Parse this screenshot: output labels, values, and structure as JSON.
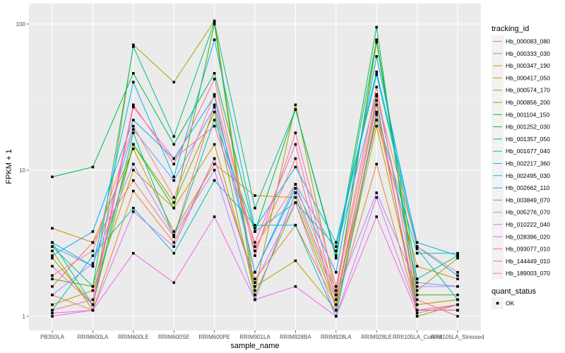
{
  "chart_data": {
    "type": "line",
    "title": "",
    "xlabel": "sample_name",
    "ylabel": "FPKM + 1",
    "y_scale": "log10",
    "ylim": [
      0.85,
      125
    ],
    "y_ticks": [
      1,
      10,
      100
    ],
    "y_tick_labels": [
      "1",
      "10",
      "100"
    ],
    "grid": true,
    "legend_position": "right",
    "categories": [
      "PB350LA",
      "RRIM600LA",
      "RRIM600LE",
      "RRIM600SE",
      "RRIM600PE",
      "RRIM901LA",
      "RRIM928BA",
      "RRIM928LA",
      "RRIM928LE",
      "RRII105LA_Control",
      "RRII105LA_Stressed"
    ],
    "color_legend_title": "tracking_id",
    "shape_legend_title": "quant_status",
    "shape_legend": [
      {
        "label": "OK",
        "shape": "square"
      }
    ],
    "series": [
      {
        "name": "Hb_000083_080",
        "color": "#F8766D",
        "values": [
          1.6,
          3.2,
          8.5,
          3.5,
          28,
          2.8,
          12,
          1.1,
          25,
          1.2,
          1.3
        ]
      },
      {
        "name": "Hb_000333_030",
        "color": "#EA8331",
        "values": [
          1.4,
          1.1,
          7.2,
          3.2,
          12,
          1.8,
          4.2,
          1.2,
          11,
          1.1,
          1.2
        ]
      },
      {
        "name": "Hb_000347_190",
        "color": "#D89000",
        "values": [
          4.0,
          3.2,
          14,
          3.8,
          11,
          6.7,
          6.5,
          1.3,
          22,
          2.2,
          1.8
        ]
      },
      {
        "name": "Hb_000417_050",
        "color": "#C09B00",
        "values": [
          1.2,
          1.5,
          10,
          5.5,
          15,
          1.6,
          2.4,
          1.1,
          20,
          1.2,
          1.3
        ]
      },
      {
        "name": "Hb_000574_170",
        "color": "#A3A500",
        "values": [
          2.8,
          1.1,
          72,
          40,
          105,
          1.5,
          28,
          1.4,
          75,
          1.5,
          2.5
        ]
      },
      {
        "name": "Hb_000856_200",
        "color": "#7CAE00",
        "values": [
          2.5,
          1.2,
          15,
          6.0,
          25,
          1.4,
          6.0,
          1.2,
          30,
          1.0,
          1.2
        ]
      },
      {
        "name": "Hb_001104_150",
        "color": "#39B600",
        "values": [
          1.8,
          1.6,
          15,
          5.5,
          100,
          1.3,
          7.0,
          1.4,
          78,
          1.4,
          1.4
        ]
      },
      {
        "name": "Hb_001252_030",
        "color": "#00BB4E",
        "values": [
          9.0,
          10.5,
          46,
          15,
          46,
          3.8,
          26,
          2.6,
          95,
          1.1,
          1.1
        ]
      },
      {
        "name": "Hb_001357_050",
        "color": "#00BF7D",
        "values": [
          3.0,
          1.6,
          70,
          17,
          103,
          5.5,
          26,
          2.5,
          78,
          1.8,
          2.6
        ]
      },
      {
        "name": "Hb_001677_040",
        "color": "#00C1A3",
        "values": [
          3.2,
          1.2,
          18,
          3.5,
          22,
          3.8,
          6.0,
          3.0,
          45,
          2.9,
          1.3
        ]
      },
      {
        "name": "Hb_002217_360",
        "color": "#00BFC4",
        "values": [
          1.1,
          2.6,
          5.5,
          2.7,
          8.5,
          4.2,
          4.2,
          1.0,
          24,
          2.7,
          2.7
        ]
      },
      {
        "name": "Hb_002495_030",
        "color": "#00B9E3",
        "values": [
          3.2,
          2.2,
          40,
          9.0,
          78,
          4.0,
          10.5,
          3.2,
          47,
          3.2,
          2.6
        ]
      },
      {
        "name": "Hb_002662_110",
        "color": "#00ADFA",
        "values": [
          2.6,
          3.8,
          22,
          12,
          32,
          2.0,
          7.5,
          2.0,
          60,
          3.0,
          1.9
        ]
      },
      {
        "name": "Hb_003849_070",
        "color": "#619CFF",
        "values": [
          3.0,
          2.2,
          19,
          8.5,
          27,
          2.0,
          8.0,
          2.8,
          33,
          1.7,
          1.6
        ]
      },
      {
        "name": "Hb_005276_070",
        "color": "#AE87FF",
        "values": [
          1.4,
          2.3,
          11,
          3.6,
          10,
          1.3,
          7.0,
          1.4,
          7.0,
          1.6,
          1.6
        ]
      },
      {
        "name": "Hb_010222_040",
        "color": "#DB72FB",
        "values": [
          1.0,
          1.1,
          5.2,
          3.0,
          12,
          1.7,
          6.0,
          1.0,
          6.5,
          1.1,
          1.1
        ]
      },
      {
        "name": "Hb_028396_020",
        "color": "#F564E3",
        "values": [
          1.05,
          1.1,
          2.7,
          1.7,
          4.8,
          1.3,
          1.6,
          1.0,
          4.8,
          1.05,
          1.2
        ]
      },
      {
        "name": "Hb_093077_010",
        "color": "#FF61C3",
        "values": [
          2.2,
          1.2,
          27,
          12,
          20,
          3.2,
          15,
          1.3,
          28,
          1.1,
          1.1
        ]
      },
      {
        "name": "Hb_144449_010",
        "color": "#FF6C91",
        "values": [
          1.1,
          1.3,
          28,
          11,
          42,
          2.6,
          18,
          1.6,
          37,
          1.3,
          1.0
        ]
      },
      {
        "name": "Hb_189003_070",
        "color": "#FF7F7F",
        "values": [
          1.9,
          2.8,
          20,
          6.5,
          33,
          3.0,
          8.0,
          1.5,
          32,
          3.0,
          2.0
        ]
      }
    ]
  }
}
